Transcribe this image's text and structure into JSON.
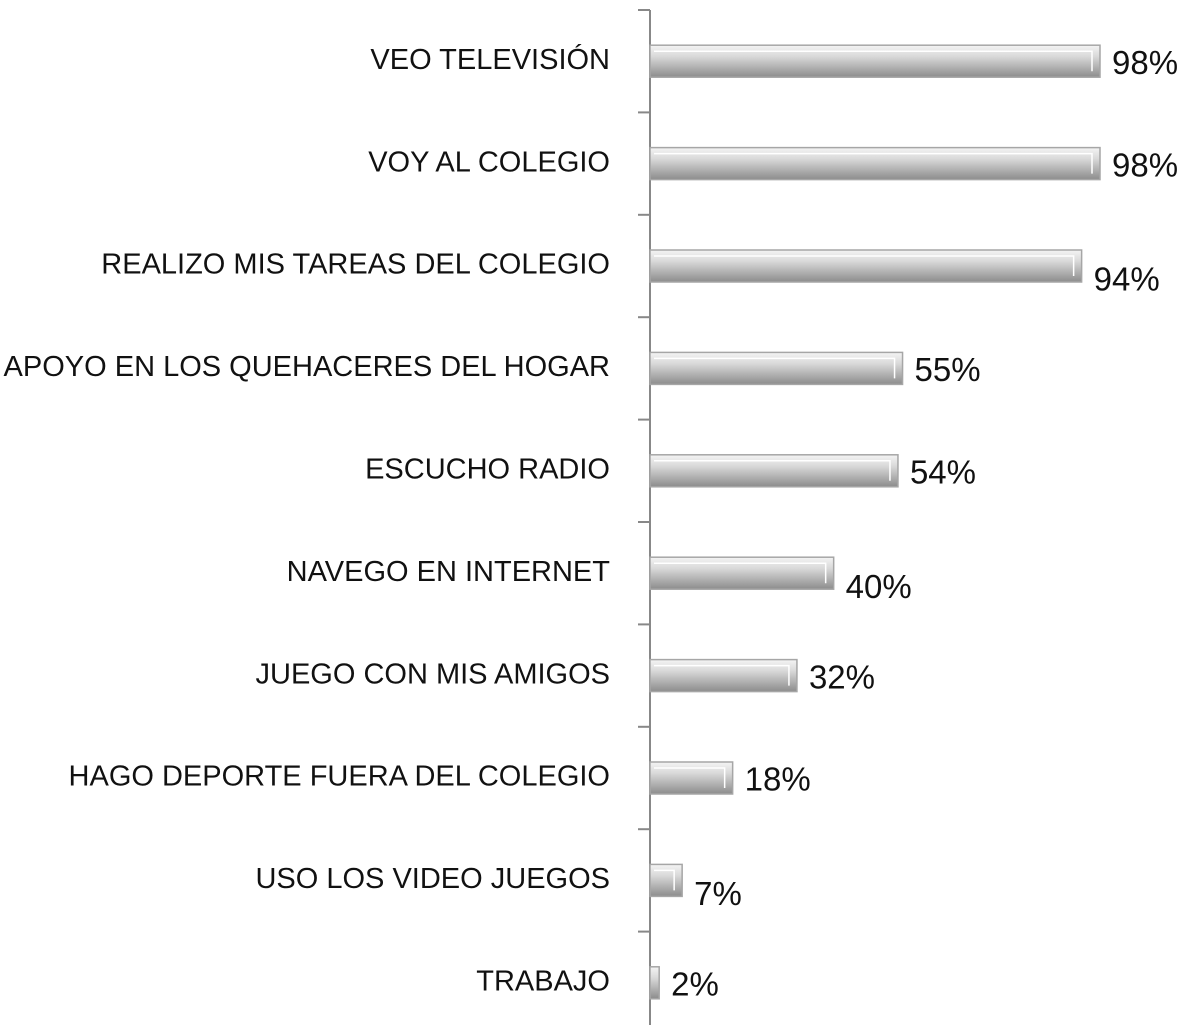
{
  "chart_data": {
    "type": "bar",
    "orientation": "horizontal",
    "categories": [
      "VEO TELEVISIÓN",
      "VOY AL COLEGIO",
      "REALIZO MIS TAREAS DEL COLEGIO",
      "APOYO EN LOS QUEHACERES DEL HOGAR",
      "ESCUCHO RADIO",
      "NAVEGO EN INTERNET",
      "JUEGO CON MIS AMIGOS",
      "HAGO DEPORTE FUERA DEL COLEGIO",
      "USO LOS VIDEO JUEGOS",
      "TRABAJO"
    ],
    "values": [
      98,
      98,
      94,
      55,
      54,
      40,
      32,
      18,
      7,
      2
    ],
    "value_labels": [
      "98%",
      "98%",
      "94%",
      "55%",
      "54%",
      "40%",
      "32%",
      "18%",
      "7%",
      "2%"
    ],
    "color": "#a6a6a6"
  }
}
